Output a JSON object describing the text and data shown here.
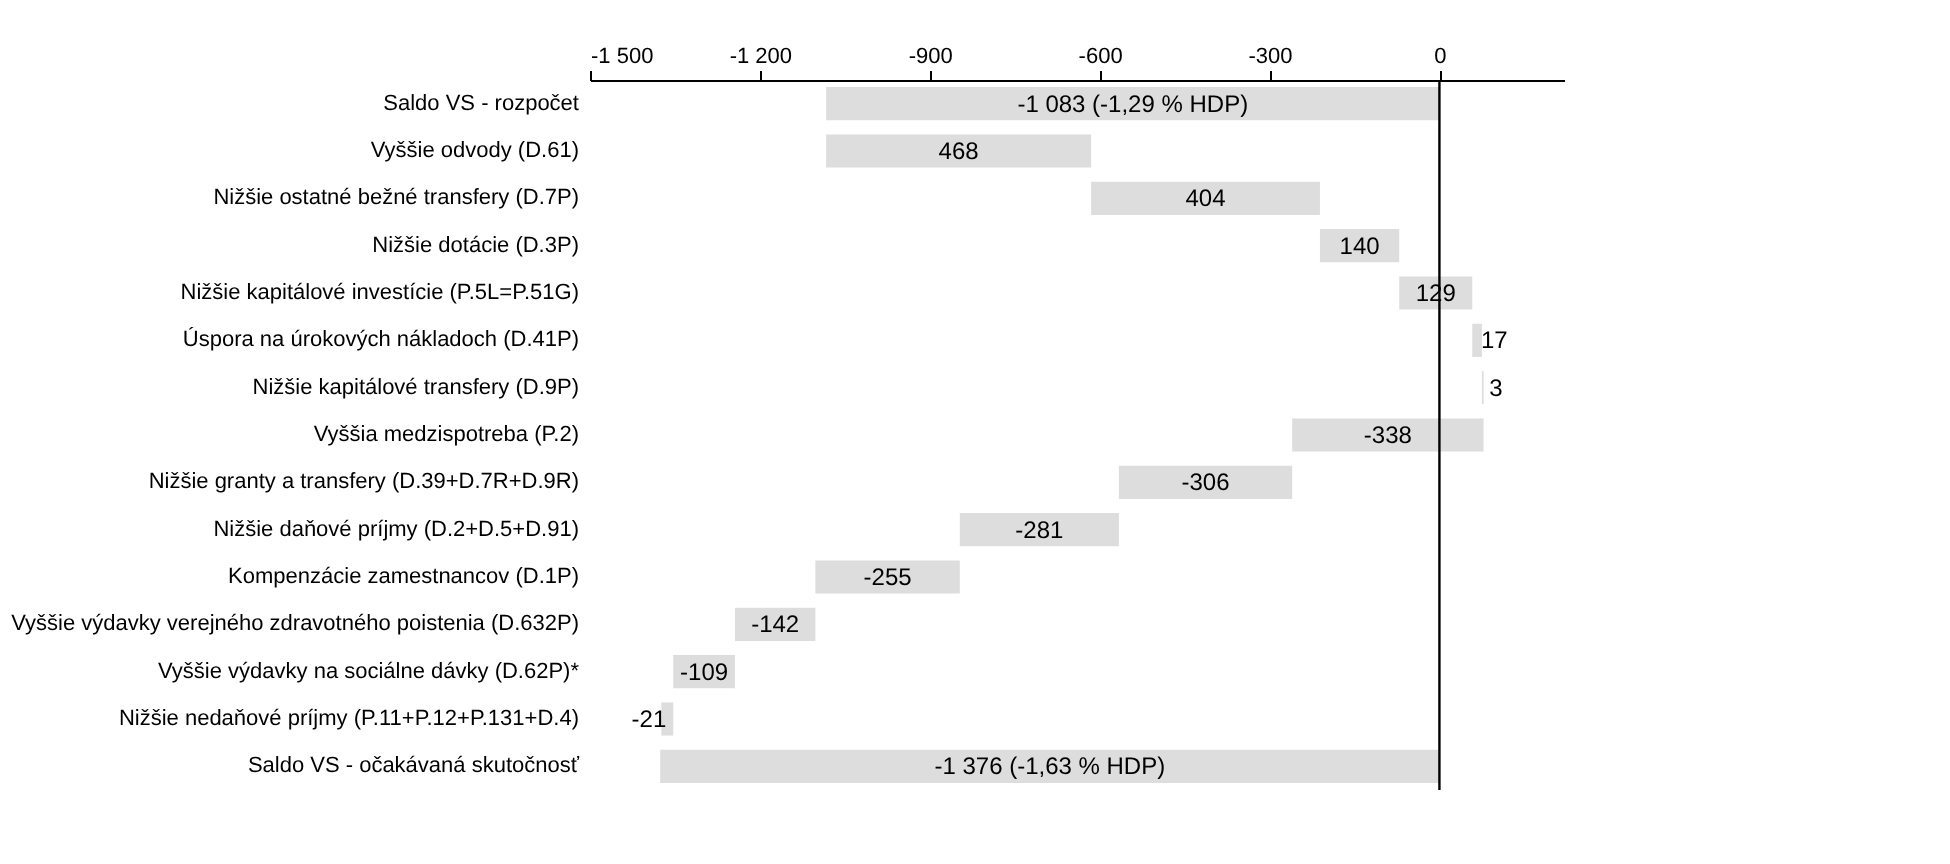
{
  "chart_data": {
    "type": "bar",
    "orientation": "horizontal",
    "categories": [
      "Saldo VS - rozpočet",
      "Vyššie odvody (D.61)",
      "Nižšie ostatné bežné transfery (D.7P)",
      "Nižšie dotácie (D.3P)",
      "Nižšie kapitálové investície (P.5L=P.51G)",
      "Úspora na úrokových nákladoch (D.41P)",
      "Nižšie kapitálové transfery (D.9P)",
      "Vyššia medzispotreba (P.2)",
      "Nižšie granty a transfery (D.39+D.7R+D.9R)",
      "Nižšie daňové príjmy (D.2+D.5+D.91)",
      "Kompenzácie zamestnancov (D.1P)",
      "Vyššie výdavky verejného zdravotného poistenia (D.632P)",
      "Vyššie výdavky na sociálne dávky (D.62P)*",
      "Nižšie nedaňové príjmy (P.11+P.12+P.131+D.4)",
      "Saldo VS - očakávaná skutočnosť"
    ],
    "values": [
      -1083,
      468,
      404,
      140,
      129,
      17,
      3,
      -338,
      -306,
      -281,
      -255,
      -142,
      -109,
      -21,
      -1376
    ],
    "base": [
      0,
      -1083,
      -615,
      -211,
      -71,
      58,
      75,
      78,
      -260,
      -566,
      -847,
      -1102,
      -1244,
      -1353,
      0
    ],
    "value_labels": [
      "-1 083 (-1,29 % HDP)",
      "468",
      "404",
      "140",
      "129",
      "17",
      "3",
      "-338",
      "-306",
      "-281",
      "-255",
      "-142",
      "-109",
      "-21",
      "-1 376 (-1,63 % HDP)"
    ],
    "color": "#dddddd",
    "xlim": [
      -1500,
      220
    ],
    "xticks": [
      {
        "value": -1500,
        "label": "-1 500"
      },
      {
        "value": -1200,
        "label": "-1 200"
      },
      -900,
      -600,
      -300,
      0
    ],
    "ref_lines": [
      {
        "axis": "x",
        "value": 0,
        "color": "#000000"
      }
    ],
    "grid": false
  }
}
